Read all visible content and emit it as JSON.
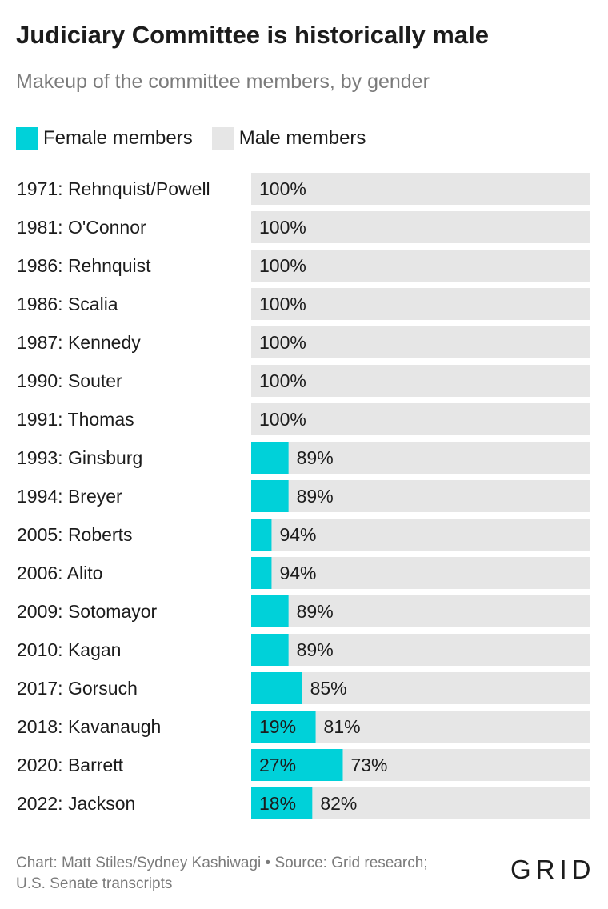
{
  "chart_data": {
    "type": "bar",
    "stacked": true,
    "orientation": "horizontal",
    "title": "Judiciary Committee is historically male",
    "subtitle": "Makeup of the committee members, by gender",
    "categories": [
      "1971: Rehnquist/Powell",
      "1981: O'Connor",
      "1986: Rehnquist",
      "1986: Scalia",
      "1987: Kennedy",
      "1990: Souter",
      "1991: Thomas",
      "1993: Ginsburg",
      "1994: Breyer",
      "2005: Roberts",
      "2006: Alito",
      "2009: Sotomayor",
      "2010: Kagan",
      "2017: Gorsuch",
      "2018: Kavanaugh",
      "2020: Barrett",
      "2022: Jackson"
    ],
    "series": [
      {
        "name": "Female members",
        "color": "#00d1d9",
        "values": [
          0,
          0,
          0,
          0,
          0,
          0,
          0,
          11,
          11,
          6,
          6,
          11,
          11,
          15,
          19,
          27,
          18
        ],
        "labels": [
          "",
          "",
          "",
          "",
          "",
          "",
          "",
          "",
          "",
          "",
          "",
          "",
          "",
          "",
          "19%",
          "27%",
          "18%"
        ]
      },
      {
        "name": "Male members",
        "color": "#e6e6e6",
        "values": [
          100,
          100,
          100,
          100,
          100,
          100,
          100,
          89,
          89,
          94,
          94,
          89,
          89,
          85,
          81,
          73,
          82
        ],
        "labels": [
          "100%",
          "100%",
          "100%",
          "100%",
          "100%",
          "100%",
          "100%",
          "89%",
          "89%",
          "94%",
          "94%",
          "89%",
          "89%",
          "85%",
          "81%",
          "73%",
          "82%"
        ]
      }
    ],
    "xlim": [
      0,
      100
    ],
    "grid": false,
    "legend_position": "top-left"
  },
  "source": "Chart: Matt Stiles/Sydney Kashiwagi • Source: Grid research;",
  "source_line2": "U.S. Senate transcripts",
  "logo_text": "GRID"
}
